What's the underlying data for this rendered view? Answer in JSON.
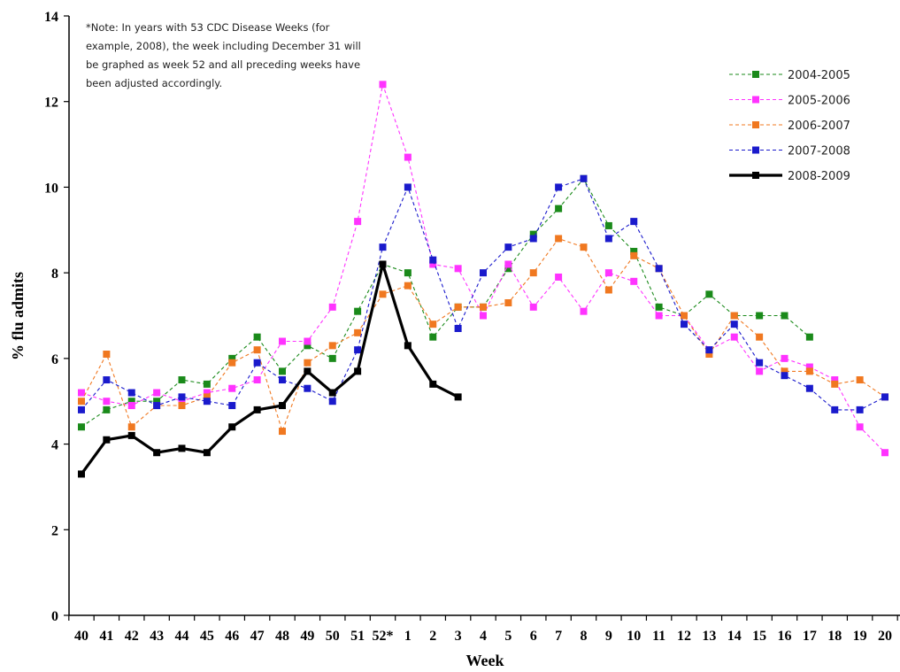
{
  "chart_data": {
    "type": "line",
    "title": "",
    "xlabel": "Week",
    "ylabel": "% flu admits",
    "ylim": [
      0,
      14
    ],
    "yticks": [
      "0",
      "2",
      "4",
      "6",
      "8",
      "10",
      "12",
      "14"
    ],
    "categories": [
      "40",
      "41",
      "42",
      "43",
      "44",
      "45",
      "46",
      "47",
      "48",
      "49",
      "50",
      "51",
      "52*",
      "1",
      "2",
      "3",
      "4",
      "5",
      "6",
      "7",
      "8",
      "9",
      "10",
      "11",
      "12",
      "13",
      "14",
      "15",
      "16",
      "17",
      "18",
      "19",
      "20"
    ],
    "note_lines": [
      "*Note: In years with 53 CDC Disease Weeks (for",
      "example, 2008), the week including December 31 will",
      "be graphed as week 52 and all preceding weeks have",
      "been adjusted accordingly."
    ],
    "legend_position": "top-right",
    "grid": false,
    "series": [
      {
        "name": "2004-2005",
        "color": "#1a8a1a",
        "style": "dashed",
        "values": [
          4.4,
          4.8,
          5.0,
          5.0,
          5.5,
          5.4,
          6.0,
          6.5,
          5.7,
          6.3,
          6.0,
          7.1,
          8.2,
          8.0,
          6.5,
          7.2,
          7.2,
          8.1,
          8.9,
          9.5,
          10.2,
          9.1,
          8.5,
          7.2,
          7.0,
          7.5,
          7.0,
          7.0,
          7.0,
          6.5,
          null,
          null,
          null
        ]
      },
      {
        "name": "2005-2006",
        "color": "#ff33ff",
        "style": "dashed",
        "values": [
          5.2,
          5.0,
          4.9,
          5.2,
          5.0,
          5.2,
          5.3,
          5.5,
          6.4,
          6.4,
          7.2,
          9.2,
          12.4,
          10.7,
          8.2,
          8.1,
          7.0,
          8.2,
          7.2,
          7.9,
          7.1,
          8.0,
          7.8,
          7.0,
          7.0,
          6.2,
          6.5,
          5.7,
          6.0,
          5.8,
          5.5,
          4.4,
          3.8
        ]
      },
      {
        "name": "2006-2007",
        "color": "#f07820",
        "style": "dashed",
        "values": [
          5.0,
          6.1,
          4.4,
          4.9,
          4.9,
          5.1,
          5.9,
          6.2,
          4.3,
          5.9,
          6.3,
          6.6,
          7.5,
          7.7,
          6.8,
          7.2,
          7.2,
          7.3,
          8.0,
          8.8,
          8.6,
          7.6,
          8.4,
          8.1,
          7.0,
          6.1,
          7.0,
          6.5,
          5.7,
          5.7,
          5.4,
          5.5,
          5.1
        ]
      },
      {
        "name": "2007-2008",
        "color": "#1a1acc",
        "style": "dashed",
        "values": [
          4.8,
          5.5,
          5.2,
          4.9,
          5.1,
          5.0,
          4.9,
          5.9,
          5.5,
          5.3,
          5.0,
          6.2,
          8.6,
          10.0,
          8.3,
          6.7,
          8.0,
          8.6,
          8.8,
          10.0,
          10.2,
          8.8,
          9.2,
          8.1,
          6.8,
          6.2,
          6.8,
          5.9,
          5.6,
          5.3,
          4.8,
          4.8,
          5.1
        ]
      },
      {
        "name": "2008-2009",
        "color": "#000000",
        "style": "solid",
        "values": [
          3.3,
          4.1,
          4.2,
          3.8,
          3.9,
          3.8,
          4.4,
          4.8,
          4.9,
          5.7,
          5.2,
          5.7,
          8.2,
          6.3,
          5.4,
          5.1,
          null,
          null,
          null,
          null,
          null,
          null,
          null,
          null,
          null,
          null,
          null,
          null,
          null,
          null,
          null,
          null,
          null
        ]
      }
    ]
  }
}
